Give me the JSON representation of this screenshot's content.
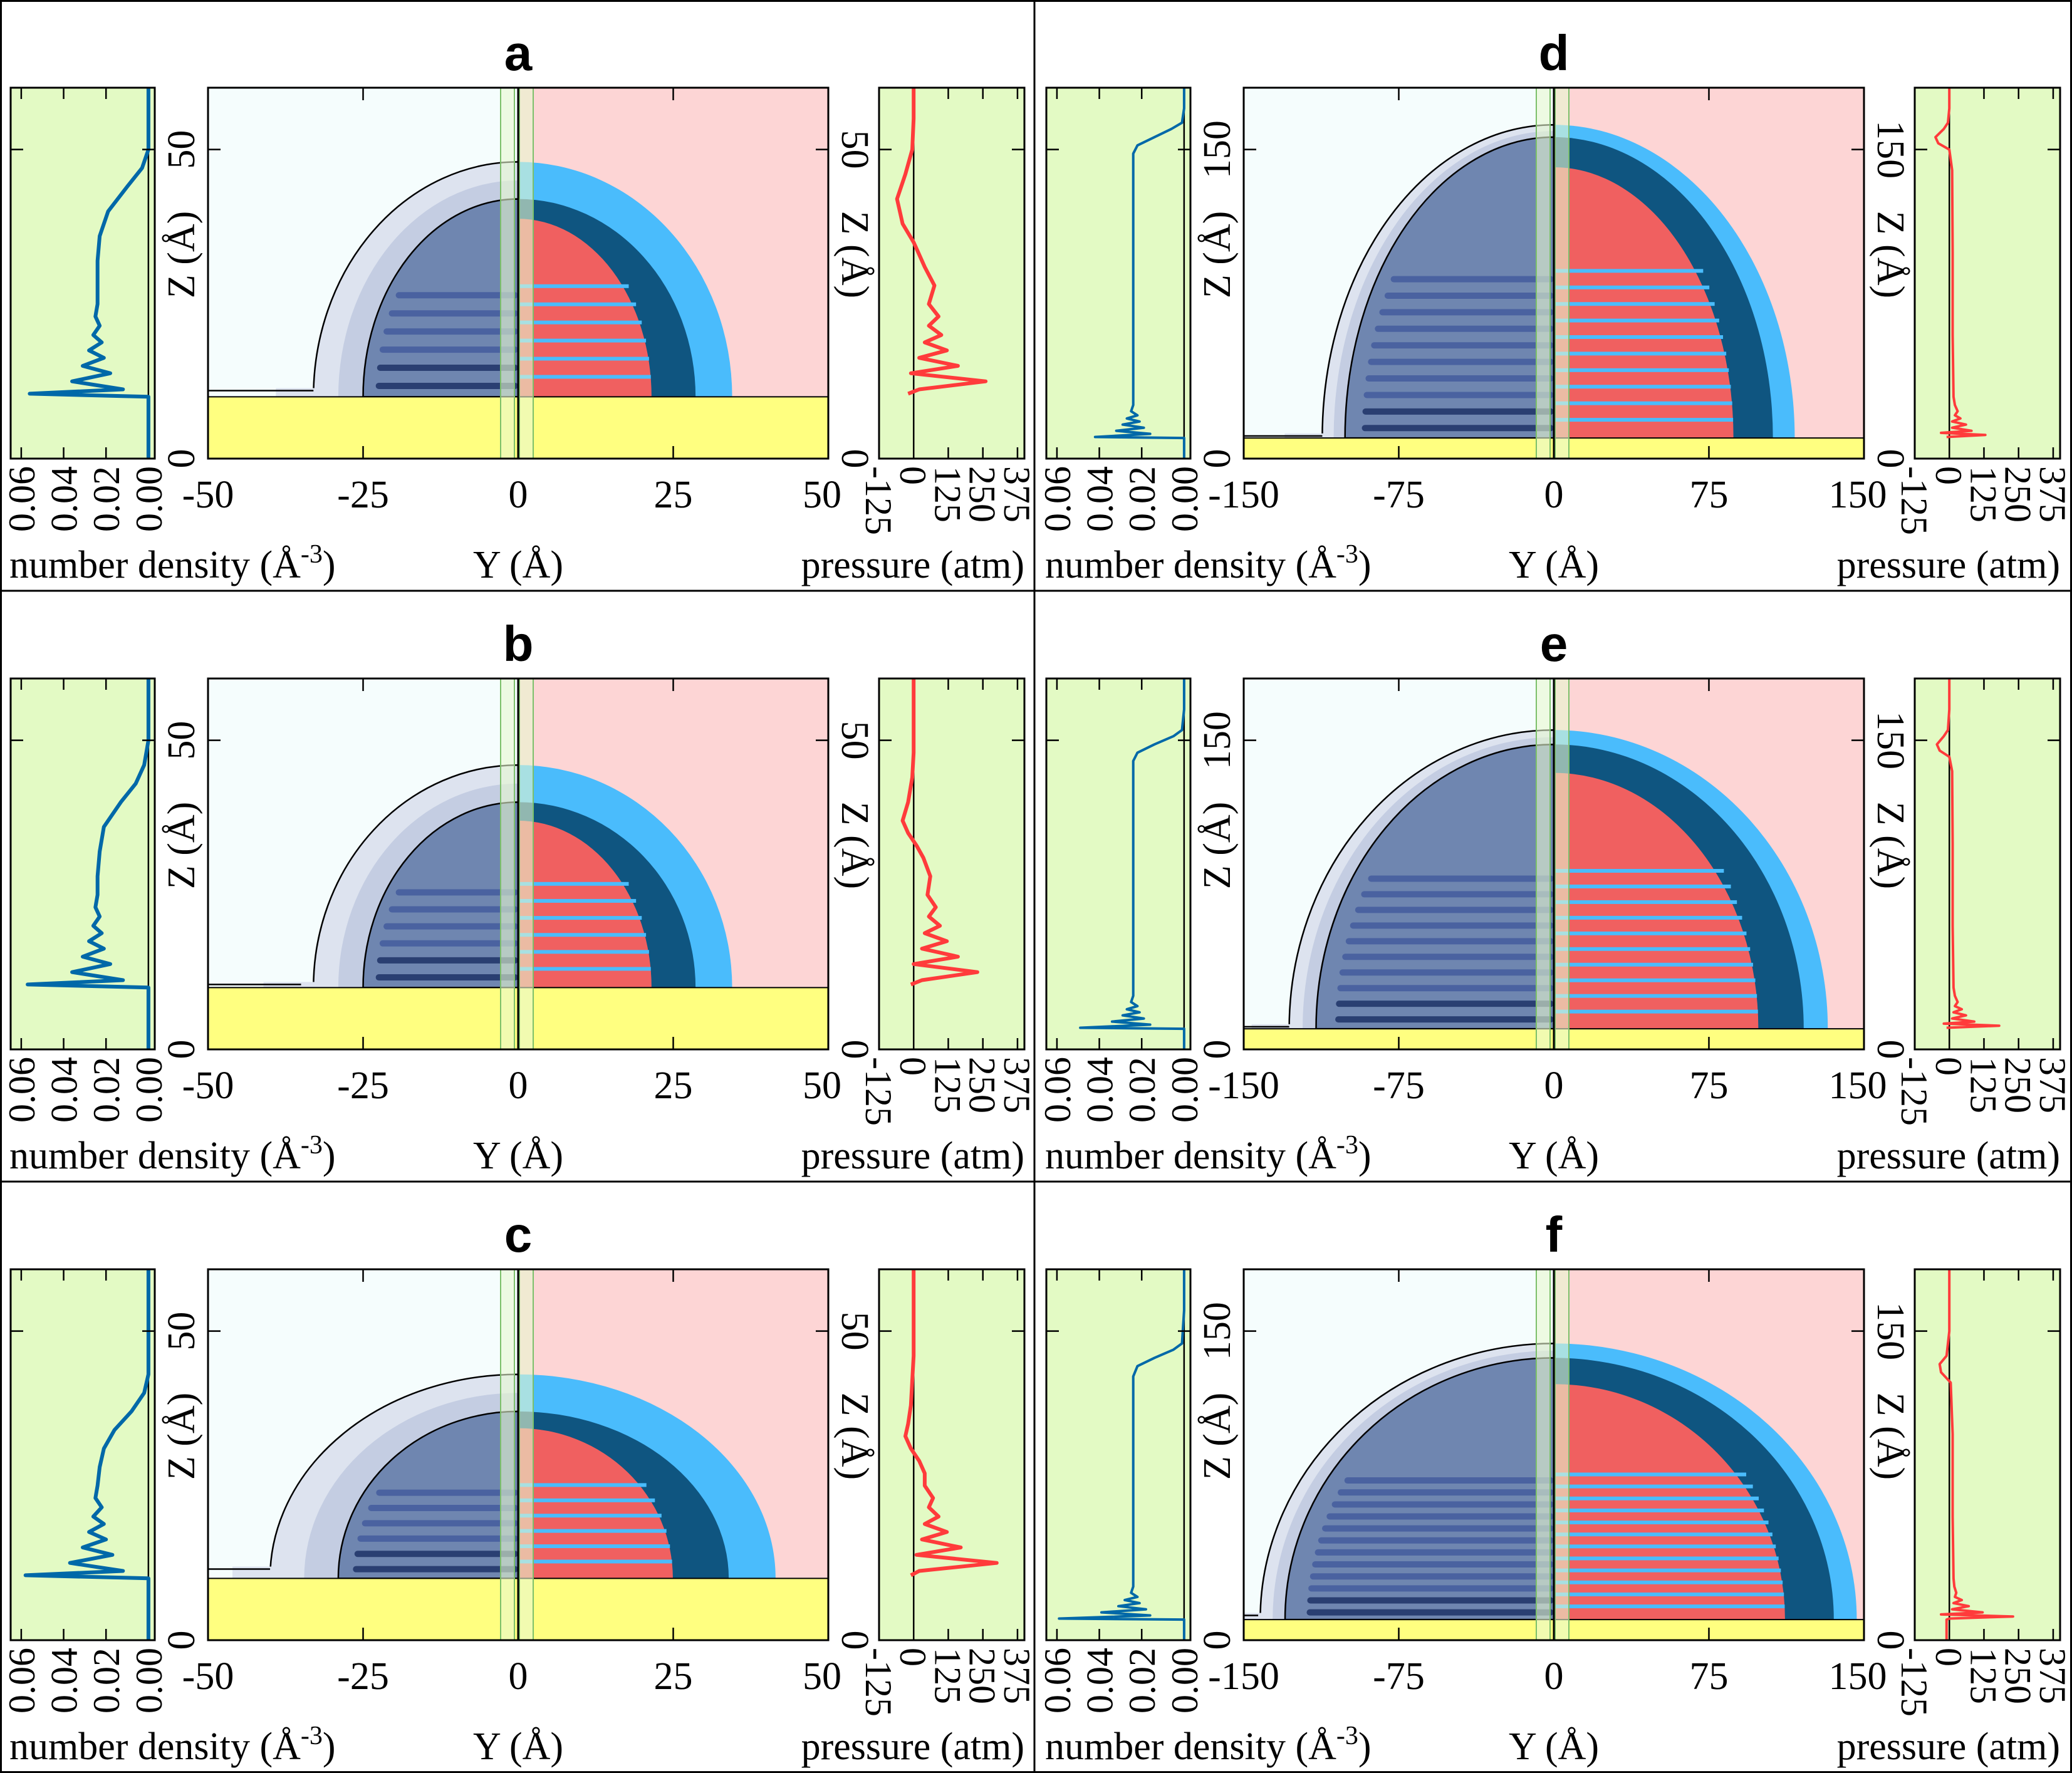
{
  "figure": {
    "colors": {
      "profile_bg": "#e3fac4",
      "vapor_left": "#f5fdfd",
      "vapor_right": "#fdd5d5",
      "substrate": "#ffff80",
      "density_line": "#0068a8",
      "pressure_line": "#ff3b3b",
      "interface_outer": "#dde3ef",
      "interface_mid": "#c4cde2",
      "liquid_density": "#6f86b0",
      "liquid_layer": "#4a62a0",
      "liquid_dense_layer": "#2a3f72",
      "pressure_outer": "#4abcfc",
      "pressure_shell": "#0f5580",
      "pressure_core": "#f06060",
      "midline_strip": "#e8f8d0"
    }
  },
  "chart_data": [
    {
      "id": "a",
      "type": "heatmap",
      "title": "a",
      "xlabel": "Y (Å)",
      "ylabel": "Z (Å)",
      "xlim": [
        -50,
        50
      ],
      "ylim": [
        0,
        60
      ],
      "xticks": [
        "-50",
        "-25",
        "0",
        "25",
        "50"
      ],
      "xtick_values": [
        -50,
        -25,
        0,
        25,
        50
      ],
      "yticks": [
        "0",
        "50"
      ],
      "ytick_values": [
        0,
        50
      ],
      "substrate_top": 10,
      "droplet": {
        "outer_radius_y": 33,
        "outer_top_z": 48,
        "inner_radius_y": 25,
        "inner_top_z": 42,
        "foot_y": -33,
        "foot_z": 11,
        "layers": 6
      },
      "density_profile": {
        "xlabel": "number density (Å-3)",
        "xlim": [
          0.065,
          -0.003
        ],
        "xticks": [
          "0.06",
          "0.04",
          "0.02",
          "0.00"
        ],
        "xtick_values": [
          0.06,
          0.04,
          0.02,
          0.0
        ],
        "z": [
          0,
          10,
          10.5,
          11.2,
          12.5,
          13.8,
          15,
          16.3,
          17.5,
          18.8,
          20,
          21.5,
          23,
          25,
          28,
          32,
          36,
          40,
          44,
          47,
          50,
          55,
          60
        ],
        "value": [
          0,
          0,
          0.056,
          0.012,
          0.036,
          0.018,
          0.031,
          0.021,
          0.028,
          0.022,
          0.026,
          0.023,
          0.025,
          0.024,
          0.024,
          0.024,
          0.023,
          0.019,
          0.01,
          0.003,
          0.0,
          0.0,
          0.0
        ]
      },
      "pressure_profile": {
        "xlabel": "pressure (atm)",
        "xlim": [
          -125,
          400
        ],
        "xticks": [
          "-125",
          "0",
          "125",
          "250",
          "375"
        ],
        "xtick_values": [
          -125,
          0,
          125,
          250,
          375
        ],
        "z": [
          10.5,
          11.2,
          12.5,
          13.8,
          15,
          16.3,
          17.5,
          18.8,
          20,
          21.5,
          23,
          25,
          28,
          31,
          33,
          35,
          38,
          42,
          46,
          50,
          55,
          60
        ],
        "value": [
          -20,
          20,
          260,
          -10,
          160,
          20,
          120,
          40,
          100,
          55,
          90,
          55,
          75,
          40,
          20,
          0,
          -40,
          -60,
          -30,
          -5,
          0,
          0
        ]
      }
    },
    {
      "id": "b",
      "type": "heatmap",
      "title": "b",
      "xlabel": "Y (Å)",
      "ylabel": "Z (Å)",
      "xlim": [
        -50,
        50
      ],
      "ylim": [
        0,
        60
      ],
      "xticks": [
        "-50",
        "-25",
        "0",
        "25",
        "50"
      ],
      "xtick_values": [
        -50,
        -25,
        0,
        25,
        50
      ],
      "yticks": [
        "0",
        "50"
      ],
      "ytick_values": [
        0,
        50
      ],
      "substrate_top": 10,
      "droplet": {
        "outer_radius_y": 33,
        "outer_top_z": 46,
        "inner_radius_y": 25,
        "inner_top_z": 40,
        "foot_y": -35,
        "foot_z": 10.5,
        "layers": 6
      },
      "density_profile": {
        "xlabel": "number density (Å-3)",
        "xlim": [
          0.065,
          -0.003
        ],
        "xticks": [
          "0.06",
          "0.04",
          "0.02",
          "0.00"
        ],
        "xtick_values": [
          0.06,
          0.04,
          0.02,
          0.0
        ],
        "z": [
          0,
          10,
          10.5,
          11.2,
          12.5,
          13.8,
          15,
          16.3,
          17.5,
          18.8,
          20,
          21.5,
          23,
          25,
          28,
          32,
          36,
          40,
          43,
          46,
          50,
          55,
          60
        ],
        "value": [
          0,
          0,
          0.057,
          0.012,
          0.036,
          0.018,
          0.031,
          0.021,
          0.028,
          0.022,
          0.026,
          0.023,
          0.025,
          0.024,
          0.024,
          0.023,
          0.021,
          0.013,
          0.006,
          0.002,
          0.0,
          0.0,
          0.0
        ]
      },
      "pressure_profile": {
        "xlabel": "pressure (atm)",
        "xlim": [
          -125,
          400
        ],
        "xticks": [
          "-125",
          "0",
          "125",
          "250",
          "375"
        ],
        "xtick_values": [
          -125,
          0,
          125,
          250,
          375
        ],
        "z": [
          10.5,
          11.2,
          12.5,
          13.8,
          15,
          16.3,
          17.5,
          18.8,
          20,
          21.5,
          23,
          25,
          28,
          31,
          33,
          35,
          37,
          40,
          44,
          48,
          55,
          60
        ],
        "value": [
          -10,
          30,
          230,
          0,
          160,
          30,
          120,
          40,
          95,
          55,
          80,
          50,
          60,
          35,
          10,
          -20,
          -40,
          -20,
          -5,
          0,
          0,
          0
        ]
      }
    },
    {
      "id": "c",
      "type": "heatmap",
      "title": "c",
      "xlabel": "Y (Å)",
      "ylabel": "Z (Å)",
      "xlim": [
        -50,
        50
      ],
      "ylim": [
        0,
        60
      ],
      "xticks": [
        "-50",
        "-25",
        "0",
        "25",
        "50"
      ],
      "xtick_values": [
        -50,
        -25,
        0,
        25,
        50
      ],
      "yticks": [
        "0",
        "50"
      ],
      "ytick_values": [
        0,
        50
      ],
      "substrate_top": 10,
      "droplet": {
        "outer_radius_y": 40,
        "outer_top_z": 43,
        "inner_radius_y": 29,
        "inner_top_z": 37,
        "foot_y": -40,
        "foot_z": 11.5,
        "layers": 6
      },
      "density_profile": {
        "xlabel": "number density (Å-3)",
        "xlim": [
          0.065,
          -0.003
        ],
        "xticks": [
          "0.06",
          "0.04",
          "0.02",
          "0.00"
        ],
        "xtick_values": [
          0.06,
          0.04,
          0.02,
          0.0
        ],
        "z": [
          0,
          10,
          10.5,
          11.2,
          12.5,
          13.8,
          15,
          16.3,
          17.5,
          18.8,
          20,
          21.5,
          23,
          25,
          28,
          31,
          34,
          37,
          40,
          43,
          50,
          55,
          60
        ],
        "value": [
          0,
          0,
          0.058,
          0.012,
          0.037,
          0.017,
          0.031,
          0.02,
          0.028,
          0.021,
          0.026,
          0.022,
          0.025,
          0.024,
          0.023,
          0.021,
          0.016,
          0.008,
          0.002,
          0.0,
          0.0,
          0.0,
          0.0
        ]
      },
      "pressure_profile": {
        "xlabel": "pressure (atm)",
        "xlim": [
          -125,
          400
        ],
        "xticks": [
          "-125",
          "0",
          "125",
          "250",
          "375"
        ],
        "xtick_values": [
          -125,
          0,
          125,
          250,
          375
        ],
        "z": [
          10.5,
          11.2,
          12.5,
          13.8,
          15,
          16.3,
          17.5,
          18.8,
          20,
          21.5,
          23,
          25,
          27,
          29,
          31,
          33,
          35,
          38,
          42,
          46,
          55,
          60
        ],
        "value": [
          -10,
          20,
          300,
          10,
          170,
          30,
          120,
          40,
          90,
          55,
          70,
          40,
          40,
          20,
          -10,
          -30,
          -20,
          -10,
          -5,
          0,
          0,
          0
        ]
      }
    },
    {
      "id": "d",
      "type": "heatmap",
      "title": "d",
      "xlabel": "Y (Å)",
      "ylabel": "Z (Å)",
      "xlim": [
        -150,
        150
      ],
      "ylim": [
        0,
        180
      ],
      "xticks": [
        "-150",
        "-75",
        "0",
        "75",
        "150"
      ],
      "xtick_values": [
        -150,
        -75,
        0,
        75,
        150
      ],
      "yticks": [
        "0",
        "150"
      ],
      "ytick_values": [
        0,
        150
      ],
      "substrate_top": 10,
      "droplet": {
        "outer_radius_y": 112,
        "outer_top_z": 162,
        "inner_radius_y": 101,
        "inner_top_z": 156,
        "foot_y": -112,
        "foot_z": 11,
        "layers": 10
      },
      "density_profile": {
        "xlabel": "number density (Å-3)",
        "xlim": [
          0.065,
          -0.003
        ],
        "xticks": [
          "0.06",
          "0.04",
          "0.02",
          "0.00"
        ],
        "xtick_values": [
          0.06,
          0.04,
          0.02,
          0.0
        ],
        "z": [
          0,
          10,
          10.5,
          12,
          13.5,
          15,
          16.5,
          18,
          19.5,
          21,
          23,
          26,
          30,
          40,
          80,
          120,
          148,
          152,
          156,
          160,
          163,
          170,
          180
        ],
        "value": [
          0,
          0,
          0.042,
          0.016,
          0.032,
          0.019,
          0.029,
          0.021,
          0.027,
          0.022,
          0.025,
          0.024,
          0.024,
          0.024,
          0.024,
          0.024,
          0.024,
          0.022,
          0.014,
          0.006,
          0.001,
          0.0,
          0.0
        ]
      },
      "pressure_profile": {
        "xlabel": "pressure (atm)",
        "xlim": [
          -125,
          400
        ],
        "xticks": [
          "-125",
          "0",
          "125",
          "250",
          "375"
        ],
        "xtick_values": [
          -125,
          0,
          125,
          250,
          375
        ],
        "z": [
          10.5,
          11.5,
          12.5,
          13.5,
          15,
          16.5,
          18,
          19.5,
          21,
          23,
          26,
          30,
          60,
          100,
          140,
          150,
          153,
          156,
          160,
          163,
          170,
          180
        ],
        "value": [
          -10,
          130,
          -30,
          80,
          10,
          60,
          10,
          40,
          20,
          30,
          20,
          15,
          12,
          12,
          10,
          0,
          -40,
          -50,
          -20,
          -5,
          0,
          0
        ]
      }
    },
    {
      "id": "e",
      "type": "heatmap",
      "title": "e",
      "xlabel": "Y (Å)",
      "ylabel": "Z (Å)",
      "xlim": [
        -150,
        150
      ],
      "ylim": [
        0,
        180
      ],
      "xticks": [
        "-150",
        "-75",
        "0",
        "75",
        "150"
      ],
      "xtick_values": [
        -150,
        -75,
        0,
        75,
        150
      ],
      "yticks": [
        "0",
        "150"
      ],
      "ytick_values": [
        0,
        150
      ],
      "substrate_top": 10,
      "droplet": {
        "outer_radius_y": 128,
        "outer_top_z": 155,
        "inner_radius_y": 115,
        "inner_top_z": 148,
        "foot_y": -128,
        "foot_z": 11,
        "layers": 10
      },
      "density_profile": {
        "xlabel": "number density (Å-3)",
        "xlim": [
          0.065,
          -0.003
        ],
        "xticks": [
          "0.06",
          "0.04",
          "0.02",
          "0.00"
        ],
        "xtick_values": [
          0.06,
          0.04,
          0.02,
          0.0
        ],
        "z": [
          0,
          10,
          10.5,
          12,
          13.5,
          15,
          16.5,
          18,
          19.5,
          21,
          23,
          26,
          30,
          40,
          80,
          120,
          140,
          144,
          148,
          152,
          155,
          165,
          180
        ],
        "value": [
          0,
          0,
          0.049,
          0.016,
          0.034,
          0.019,
          0.029,
          0.021,
          0.027,
          0.022,
          0.025,
          0.024,
          0.024,
          0.024,
          0.024,
          0.024,
          0.024,
          0.022,
          0.014,
          0.005,
          0.001,
          0.0,
          0.0
        ]
      },
      "pressure_profile": {
        "xlabel": "pressure (atm)",
        "xlim": [
          -125,
          400
        ],
        "xticks": [
          "-125",
          "0",
          "125",
          "250",
          "375"
        ],
        "xtick_values": [
          -125,
          0,
          125,
          250,
          375
        ],
        "z": [
          10.5,
          11.5,
          12.5,
          13.5,
          15,
          16.5,
          18,
          19.5,
          21,
          23,
          26,
          30,
          60,
          100,
          135,
          142,
          145,
          148,
          152,
          155,
          165,
          180
        ],
        "value": [
          -10,
          180,
          -20,
          90,
          10,
          60,
          15,
          45,
          20,
          30,
          20,
          15,
          12,
          12,
          10,
          0,
          -35,
          -45,
          -20,
          -5,
          0,
          0
        ]
      }
    },
    {
      "id": "f",
      "type": "heatmap",
      "title": "f",
      "xlabel": "Y (Å)",
      "ylabel": "Z (Å)",
      "xlim": [
        -150,
        150
      ],
      "ylim": [
        0,
        180
      ],
      "xticks": [
        "-150",
        "-75",
        "0",
        "75",
        "150"
      ],
      "xtick_values": [
        -150,
        -75,
        0,
        75,
        150
      ],
      "yticks": [
        "0",
        "150"
      ],
      "ytick_values": [
        0,
        150
      ],
      "substrate_top": 10,
      "droplet": {
        "outer_radius_y": 142,
        "outer_top_z": 144,
        "inner_radius_y": 130,
        "inner_top_z": 137,
        "foot_y": -143,
        "foot_z": 12,
        "layers": 12
      },
      "density_profile": {
        "xlabel": "number density (Å-3)",
        "xlim": [
          0.065,
          -0.003
        ],
        "xticks": [
          "0.06",
          "0.04",
          "0.02",
          "0.00"
        ],
        "xtick_values": [
          0.06,
          0.04,
          0.02,
          0.0
        ],
        "z": [
          0,
          10,
          10.5,
          12,
          13.5,
          15,
          16.5,
          18,
          19.5,
          21,
          23,
          26,
          30,
          40,
          80,
          120,
          128,
          133,
          137,
          141,
          144,
          160,
          180
        ],
        "value": [
          0,
          0,
          0.059,
          0.016,
          0.039,
          0.018,
          0.031,
          0.021,
          0.028,
          0.022,
          0.025,
          0.024,
          0.024,
          0.024,
          0.024,
          0.024,
          0.024,
          0.022,
          0.014,
          0.005,
          0.001,
          0.0,
          0.0
        ]
      },
      "pressure_profile": {
        "xlabel": "pressure (atm)",
        "xlim": [
          -125,
          400
        ],
        "xticks": [
          "-125",
          "0",
          "125",
          "250",
          "375"
        ],
        "xtick_values": [
          -125,
          0,
          125,
          250,
          375
        ],
        "z": [
          0,
          10,
          10.5,
          11.5,
          12.5,
          13.5,
          15,
          16.5,
          18,
          19.5,
          21,
          23,
          26,
          30,
          60,
          100,
          125,
          130,
          134,
          138,
          150,
          180
        ],
        "value": [
          -10,
          -10,
          0,
          230,
          -30,
          120,
          10,
          70,
          15,
          45,
          20,
          25,
          18,
          15,
          12,
          12,
          5,
          -30,
          -35,
          -10,
          0,
          0
        ]
      }
    }
  ]
}
